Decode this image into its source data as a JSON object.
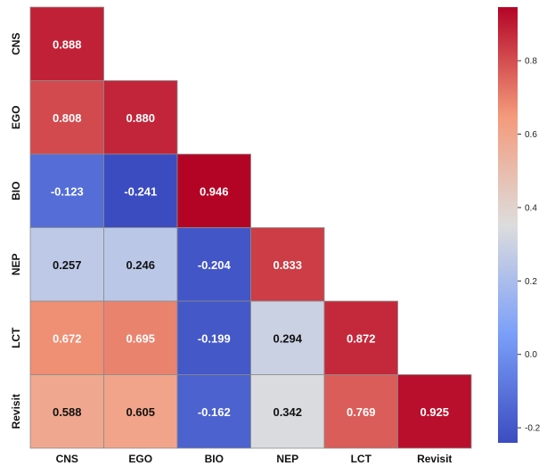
{
  "chart_data": {
    "type": "heatmap",
    "title": "",
    "layout": "lower-triangle",
    "rows": [
      "CNS",
      "EGO",
      "BIO",
      "NEP",
      "LCT",
      "Revisit"
    ],
    "columns": [
      "CNS",
      "EGO",
      "BIO",
      "NEP",
      "LCT",
      "Revisit"
    ],
    "values": [
      [
        0.888,
        null,
        null,
        null,
        null,
        null
      ],
      [
        0.808,
        0.88,
        null,
        null,
        null,
        null
      ],
      [
        -0.123,
        -0.241,
        0.946,
        null,
        null,
        null
      ],
      [
        0.257,
        0.246,
        -0.204,
        0.833,
        null,
        null
      ],
      [
        0.672,
        0.695,
        -0.199,
        0.294,
        0.872,
        null
      ],
      [
        0.588,
        0.605,
        -0.162,
        0.342,
        0.769,
        0.925
      ]
    ],
    "labels": [
      [
        "0.888",
        "",
        "",
        "",
        "",
        ""
      ],
      [
        "0.808",
        "0.880",
        "",
        "",
        "",
        ""
      ],
      [
        "-0.123",
        "-0.241",
        "0.946",
        "",
        "",
        ""
      ],
      [
        "0.257",
        "0.246",
        "-0.204",
        "0.833",
        "",
        ""
      ],
      [
        "0.672",
        "0.695",
        "-0.199",
        "0.294",
        "0.872",
        ""
      ],
      [
        "0.588",
        "0.605",
        "-0.162",
        "0.342",
        "0.769",
        "0.925"
      ]
    ],
    "colormap": "coolwarm",
    "colorbar": {
      "range": [
        -0.241,
        0.946
      ],
      "ticks": [
        -0.2,
        0.0,
        0.2,
        0.4,
        0.6,
        0.8
      ],
      "tick_labels": [
        "-0.2",
        "0.0",
        "0.2",
        "0.4",
        "0.6",
        "0.8"
      ],
      "placement": "right"
    }
  }
}
